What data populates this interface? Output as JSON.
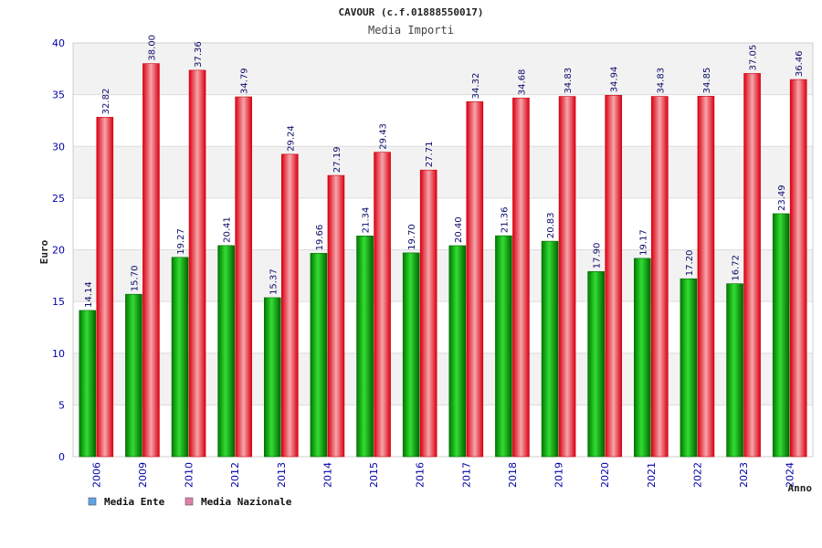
{
  "chart_data": {
    "type": "bar",
    "title": "CAVOUR (c.f.01888550017)",
    "subtitle": "Media Importi",
    "xlabel": "Anno",
    "ylabel": "Euro",
    "ylim": [
      0,
      40
    ],
    "yticks": [
      0,
      5,
      10,
      15,
      20,
      25,
      30,
      35,
      40
    ],
    "grid": true,
    "legend_position": "bottom-left",
    "categories": [
      "2006",
      "2009",
      "2010",
      "2012",
      "2013",
      "2014",
      "2015",
      "2016",
      "2017",
      "2018",
      "2019",
      "2020",
      "2021",
      "2022",
      "2023",
      "2024"
    ],
    "series": [
      {
        "name": "Media Ente",
        "color": "#00aa00",
        "legend_color": "#5ea2e6",
        "values": [
          14.14,
          15.7,
          19.27,
          20.41,
          15.37,
          19.66,
          21.34,
          19.7,
          20.4,
          21.36,
          20.83,
          17.9,
          19.17,
          17.2,
          16.72,
          23.49
        ],
        "labels": [
          "14.14",
          "15.70",
          "19.27",
          "20.41",
          "15.37",
          "19.66",
          "21.34",
          "19.70",
          "20.40",
          "21.36",
          "20.83",
          "17.90",
          "19.17",
          "17.20",
          "16.72",
          "23.49"
        ]
      },
      {
        "name": "Media Nazionale",
        "color": "#ee1122",
        "legend_color": "#dd7fa8",
        "values": [
          32.82,
          38.0,
          37.36,
          34.79,
          29.24,
          27.19,
          29.43,
          27.71,
          34.32,
          34.68,
          34.83,
          34.94,
          34.83,
          34.85,
          37.05,
          36.46
        ],
        "labels": [
          "32.82",
          "38.00",
          "37.36",
          "34.79",
          "29.24",
          "27.19",
          "29.43",
          "27.71",
          "34.32",
          "34.68",
          "34.83",
          "34.94",
          "34.83",
          "34.85",
          "37.05",
          "36.46"
        ]
      }
    ]
  }
}
